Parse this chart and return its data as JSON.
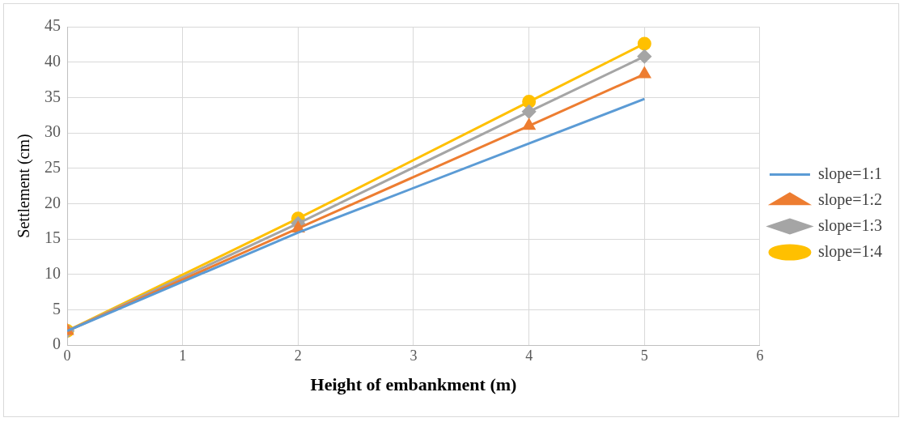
{
  "chart_data": {
    "type": "line",
    "xlabel": "Height of embankment (m)",
    "ylabel": "Settlement (cm)",
    "xlim": [
      0,
      6
    ],
    "xticks": [
      0,
      1,
      2,
      3,
      4,
      5,
      6
    ],
    "ylim": [
      0,
      45
    ],
    "yticks": [
      0,
      5,
      10,
      15,
      20,
      25,
      30,
      35,
      40,
      45
    ],
    "grid": true,
    "legend": "right",
    "line_style": "solid",
    "series": [
      {
        "name": "slope=1:1",
        "color": "#5b9bd5",
        "marker": "none",
        "x": [
          0,
          2,
          4,
          5
        ],
        "values": [
          2,
          15.9,
          28.5,
          34.8
        ]
      },
      {
        "name": "slope=1:2",
        "color": "#ed7d31",
        "marker": "triangle",
        "x": [
          0,
          2,
          4,
          5
        ],
        "values": [
          2,
          16.5,
          31,
          38.3
        ]
      },
      {
        "name": "slope=1:3",
        "color": "#a5a5a5",
        "marker": "diamond",
        "x": [
          0,
          2,
          4,
          5
        ],
        "values": [
          2,
          17.2,
          33,
          40.8
        ]
      },
      {
        "name": "slope=1:4",
        "color": "#ffc000",
        "marker": "circle",
        "x": [
          0,
          2,
          4,
          5
        ],
        "values": [
          2,
          17.9,
          34.4,
          42.6
        ]
      }
    ]
  }
}
